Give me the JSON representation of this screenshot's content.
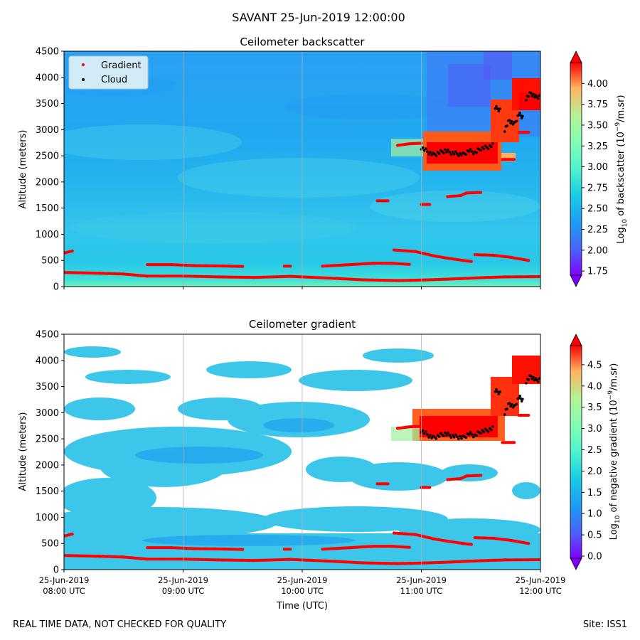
{
  "figure": {
    "suptitle": "SAVANT 25-Jun-2019 12:00:00",
    "footer_left": "REAL TIME DATA, NOT CHECKED FOR QUALITY",
    "footer_right": "Site: ISS1",
    "xlabel": "Time (UTC)",
    "x_tick_dates": [
      "25-Jun-2019",
      "25-Jun-2019",
      "25-Jun-2019",
      "25-Jun-2019",
      "25-Jun-2019"
    ],
    "x_tick_times": [
      "08:00 UTC",
      "09:00 UTC",
      "10:00 UTC",
      "11:00 UTC",
      "12:00 UTC"
    ]
  },
  "chart_data": [
    {
      "type": "heatmap",
      "title": "Ceilometer backscatter",
      "ylabel": "Altitude (meters)",
      "xlim": [
        "08:00",
        "12:00"
      ],
      "ylim": [
        0,
        4500
      ],
      "y_ticks": [
        "0",
        "500",
        "1000",
        "1500",
        "2000",
        "2500",
        "3000",
        "3500",
        "4000",
        "4500"
      ],
      "colorbar": {
        "label_prefix": "Log",
        "label_sub": "10",
        "label_mid": " of backscatter (10",
        "label_sup": "−9",
        "label_suffix": "/m.sr)",
        "range": [
          1.7,
          4.25
        ],
        "ticks": [
          "1.75",
          "2.00",
          "2.25",
          "2.50",
          "2.75",
          "3.00",
          "3.25",
          "3.50",
          "3.75",
          "4.00"
        ]
      },
      "legend": {
        "position": "top-left",
        "entries": [
          {
            "label": "Gradient",
            "color": "#ff0000"
          },
          {
            "label": "Cloud",
            "color": "#000000"
          }
        ]
      },
      "grid": "vertical"
    },
    {
      "type": "heatmap",
      "title": "Ceilometer gradient",
      "ylabel": "Altitude (meters)",
      "xlim": [
        "08:00",
        "12:00"
      ],
      "ylim": [
        0,
        4500
      ],
      "y_ticks": [
        "0",
        "500",
        "1000",
        "1500",
        "2000",
        "2500",
        "3000",
        "3500",
        "4000",
        "4500"
      ],
      "colorbar": {
        "label_prefix": "Log",
        "label_sub": "10",
        "label_mid": " of negative gradient (10",
        "label_sup": "−9",
        "label_suffix": "/m.sr)",
        "range": [
          -0.05,
          4.95
        ],
        "ticks": [
          "0.0",
          "0.5",
          "1.0",
          "1.5",
          "2.0",
          "2.5",
          "3.0",
          "3.5",
          "4.0",
          "4.5"
        ]
      },
      "grid": "vertical"
    }
  ],
  "series": {
    "gradient_segments_hours_alt": [
      [
        [
          8.0,
          640
        ],
        [
          8.07,
          680
        ]
      ],
      [
        [
          8.0,
          270
        ],
        [
          8.3,
          255
        ],
        [
          8.5,
          240
        ],
        [
          8.7,
          200
        ],
        [
          9.0,
          200
        ],
        [
          9.3,
          185
        ],
        [
          9.6,
          175
        ],
        [
          9.9,
          195
        ],
        [
          10.2,
          165
        ],
        [
          10.5,
          130
        ],
        [
          10.8,
          115
        ],
        [
          11.0,
          125
        ],
        [
          11.2,
          140
        ],
        [
          11.5,
          170
        ],
        [
          11.7,
          185
        ],
        [
          12.0,
          190
        ]
      ],
      [
        [
          8.7,
          420
        ],
        [
          8.9,
          420
        ],
        [
          9.1,
          400
        ],
        [
          9.3,
          395
        ],
        [
          9.5,
          385
        ]
      ],
      [
        [
          9.85,
          390
        ],
        [
          9.9,
          390
        ]
      ],
      [
        [
          10.17,
          390
        ],
        [
          10.4,
          420
        ],
        [
          10.6,
          445
        ],
        [
          10.75,
          445
        ],
        [
          10.9,
          425
        ]
      ],
      [
        [
          10.77,
          700
        ],
        [
          10.95,
          670
        ],
        [
          11.1,
          590
        ],
        [
          11.2,
          550
        ],
        [
          11.35,
          500
        ],
        [
          11.42,
          480
        ]
      ],
      [
        [
          11.45,
          610
        ],
        [
          11.6,
          600
        ],
        [
          11.75,
          560
        ],
        [
          11.9,
          500
        ]
      ],
      [
        [
          10.63,
          1640
        ],
        [
          10.72,
          1640
        ]
      ],
      [
        [
          11.0,
          1570
        ],
        [
          11.07,
          1570
        ]
      ],
      [
        [
          11.22,
          1720
        ],
        [
          11.33,
          1740
        ],
        [
          11.38,
          1790
        ],
        [
          11.5,
          1800
        ]
      ],
      [
        [
          10.8,
          2700
        ],
        [
          10.9,
          2730
        ],
        [
          11.0,
          2740
        ]
      ],
      [
        [
          11.68,
          2430
        ],
        [
          11.78,
          2430
        ]
      ],
      [
        [
          11.82,
          2950
        ],
        [
          11.9,
          2950
        ]
      ]
    ],
    "cloud_band_hours_alt": [
      [
        11.0,
        2660
      ],
      [
        11.05,
        2580
      ],
      [
        11.1,
        2520
      ],
      [
        11.15,
        2560
      ],
      [
        11.2,
        2600
      ],
      [
        11.25,
        2560
      ],
      [
        11.3,
        2540
      ],
      [
        11.35,
        2520
      ],
      [
        11.4,
        2600
      ],
      [
        11.45,
        2560
      ],
      [
        11.5,
        2640
      ],
      [
        11.55,
        2660
      ],
      [
        11.6,
        2700
      ],
      [
        11.62,
        3420
      ],
      [
        11.66,
        3380
      ],
      [
        11.7,
        3000
      ],
      [
        11.74,
        3180
      ],
      [
        11.78,
        3100
      ],
      [
        11.82,
        3300
      ],
      [
        11.85,
        3240
      ],
      [
        11.88,
        3600
      ],
      [
        11.92,
        3700
      ],
      [
        11.96,
        3620
      ],
      [
        12.0,
        3640
      ]
    ]
  }
}
